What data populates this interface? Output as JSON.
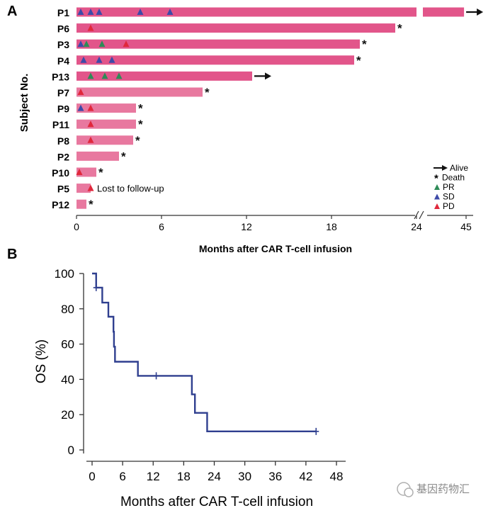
{
  "chart_data": [
    {
      "panel": "A",
      "type": "swimmer",
      "ylabel": "Subject No.",
      "xlabel": "Months after CAR T-cell infusion",
      "xticks": [
        "0",
        "6",
        "12",
        "18",
        "24",
        "45"
      ],
      "axis_break": "24 to 45",
      "subjects": [
        {
          "id": "P1",
          "months": 44,
          "end": "alive",
          "events": [
            {
              "t": 0.3,
              "type": "SD"
            },
            {
              "t": 1.0,
              "type": "SD"
            },
            {
              "t": 1.6,
              "type": "SD"
            },
            {
              "t": 4.5,
              "type": "SD"
            },
            {
              "t": 6.6,
              "type": "SD"
            }
          ]
        },
        {
          "id": "P6",
          "months": 22.5,
          "end": "death",
          "events": [
            {
              "t": 1.0,
              "type": "PD"
            }
          ]
        },
        {
          "id": "P3",
          "months": 20,
          "end": "death",
          "events": [
            {
              "t": 0.3,
              "type": "SD"
            },
            {
              "t": 0.7,
              "type": "PR"
            },
            {
              "t": 1.8,
              "type": "PR"
            },
            {
              "t": 3.5,
              "type": "PD"
            }
          ]
        },
        {
          "id": "P4",
          "months": 19.6,
          "end": "death",
          "events": [
            {
              "t": 0.5,
              "type": "SD"
            },
            {
              "t": 1.6,
              "type": "SD"
            },
            {
              "t": 2.5,
              "type": "SD"
            }
          ]
        },
        {
          "id": "P13",
          "months": 12.4,
          "end": "alive",
          "events": [
            {
              "t": 1.0,
              "type": "PR"
            },
            {
              "t": 2.0,
              "type": "PR"
            },
            {
              "t": 3.0,
              "type": "PR"
            }
          ]
        },
        {
          "id": "P7",
          "months": 8.9,
          "end": "death",
          "events": [
            {
              "t": 0.3,
              "type": "PD"
            }
          ]
        },
        {
          "id": "P9",
          "months": 4.2,
          "end": "death",
          "events": [
            {
              "t": 0.3,
              "type": "SD"
            },
            {
              "t": 1.0,
              "type": "PD"
            }
          ]
        },
        {
          "id": "P11",
          "months": 4.2,
          "end": "death",
          "events": [
            {
              "t": 1.0,
              "type": "PD"
            }
          ]
        },
        {
          "id": "P8",
          "months": 4.0,
          "end": "death",
          "events": [
            {
              "t": 1.0,
              "type": "PD"
            }
          ]
        },
        {
          "id": "P2",
          "months": 3.0,
          "end": "death",
          "events": []
        },
        {
          "id": "P10",
          "months": 1.4,
          "end": "death",
          "events": [
            {
              "t": 0.2,
              "type": "PD"
            }
          ]
        },
        {
          "id": "P5",
          "months": 1.0,
          "end": "lost",
          "events": [
            {
              "t": 1.0,
              "type": "PD"
            }
          ]
        },
        {
          "id": "P12",
          "months": 0.7,
          "end": "death",
          "events": []
        }
      ],
      "annotation": "Lost to follow-up",
      "legend": [
        {
          "label": "Alive",
          "symbol": "arrow"
        },
        {
          "label": "Death",
          "symbol": "asterisk"
        },
        {
          "label": "PR",
          "symbol": "triangle",
          "color": "#2e8b57"
        },
        {
          "label": "SD",
          "symbol": "triangle",
          "color": "#3d4aa8"
        },
        {
          "label": "PD",
          "symbol": "triangle",
          "color": "#e0283c"
        }
      ],
      "colors": {
        "bar": "#e2558a",
        "bar_light": "#e8789f",
        "PR": "#2e8b57",
        "SD": "#3d4aa8",
        "PD": "#e0283c"
      }
    },
    {
      "panel": "B",
      "type": "line",
      "subtype": "kaplan-meier",
      "xlabel": "Months after CAR T-cell infusion",
      "ylabel": "OS (%)",
      "xlim": [
        0,
        48
      ],
      "ylim": [
        0,
        100
      ],
      "xticks": [
        0,
        6,
        12,
        18,
        24,
        30,
        36,
        42,
        48
      ],
      "yticks": [
        0,
        20,
        40,
        60,
        80,
        100
      ],
      "steps": [
        {
          "x": 0,
          "y": 100
        },
        {
          "x": 0.8,
          "y": 92
        },
        {
          "x": 2.0,
          "y": 83.5
        },
        {
          "x": 3.2,
          "y": 75.5
        },
        {
          "x": 4.2,
          "y": 67
        },
        {
          "x": 4.3,
          "y": 58.5
        },
        {
          "x": 4.5,
          "y": 50
        },
        {
          "x": 9.0,
          "y": 42
        },
        {
          "x": 19.6,
          "y": 31.5
        },
        {
          "x": 20.2,
          "y": 21
        },
        {
          "x": 22.6,
          "y": 10.5
        },
        {
          "x": 44,
          "y": 10.5
        }
      ],
      "censored": [
        {
          "x": 0.8,
          "y": 92
        },
        {
          "x": 12.6,
          "y": 42
        },
        {
          "x": 44,
          "y": 10.5
        }
      ],
      "color": "#2f3f8f"
    }
  ],
  "panel_labels": {
    "a": "A",
    "b": "B"
  },
  "watermark": "基因药物汇"
}
